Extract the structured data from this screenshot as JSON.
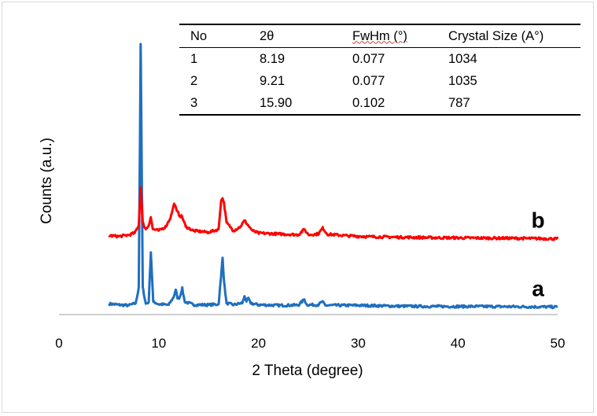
{
  "chart_data": {
    "type": "line",
    "xlabel": "2 Theta (degree)",
    "ylabel": "Counts (a.u.)",
    "xlim": [
      0,
      50
    ],
    "xticks": [
      0,
      10,
      20,
      30,
      40,
      50
    ],
    "ylim": [
      0,
      100
    ],
    "grid": false,
    "legend": "none",
    "series": [
      {
        "name": "a",
        "color": "#1f6fbf",
        "baseline": 3.8,
        "points": [
          [
            5.0,
            4.0
          ],
          [
            6.0,
            3.6
          ],
          [
            7.0,
            3.4
          ],
          [
            7.7,
            4.2
          ],
          [
            8.0,
            10
          ],
          [
            8.19,
            100
          ],
          [
            8.4,
            10
          ],
          [
            8.7,
            4.0
          ],
          [
            9.0,
            4.6
          ],
          [
            9.21,
            23
          ],
          [
            9.45,
            4.8
          ],
          [
            10.0,
            3.8
          ],
          [
            11.0,
            3.6
          ],
          [
            11.5,
            6.5
          ],
          [
            11.7,
            9.2
          ],
          [
            11.9,
            6.0
          ],
          [
            12.1,
            6.3
          ],
          [
            12.35,
            9.8
          ],
          [
            12.6,
            4.8
          ],
          [
            13.5,
            3.6
          ],
          [
            15.0,
            3.6
          ],
          [
            16.0,
            3.8
          ],
          [
            16.25,
            14
          ],
          [
            16.4,
            21
          ],
          [
            16.55,
            12
          ],
          [
            16.8,
            4.2
          ],
          [
            17.5,
            3.6
          ],
          [
            18.4,
            4.3
          ],
          [
            18.6,
            6.8
          ],
          [
            18.8,
            4.8
          ],
          [
            19.0,
            6.2
          ],
          [
            19.2,
            4.2
          ],
          [
            20.0,
            3.6
          ],
          [
            22.0,
            3.4
          ],
          [
            24.0,
            3.5
          ],
          [
            24.6,
            5.6
          ],
          [
            24.85,
            3.6
          ],
          [
            26.0,
            3.6
          ],
          [
            26.4,
            4.8
          ],
          [
            26.7,
            3.4
          ],
          [
            30.0,
            3.4
          ],
          [
            34.0,
            3.1
          ],
          [
            38.0,
            3.0
          ],
          [
            42.0,
            3.0
          ],
          [
            46.0,
            2.9
          ],
          [
            50.0,
            2.8
          ]
        ]
      },
      {
        "name": "b",
        "color": "#ff0000",
        "baseline": 29,
        "points": [
          [
            5.0,
            29.2
          ],
          [
            6.0,
            28.9
          ],
          [
            7.0,
            29.4
          ],
          [
            7.6,
            30.2
          ],
          [
            8.0,
            33
          ],
          [
            8.19,
            47
          ],
          [
            8.4,
            34
          ],
          [
            8.7,
            31.5
          ],
          [
            9.0,
            33
          ],
          [
            9.2,
            36
          ],
          [
            9.4,
            31.6
          ],
          [
            10.0,
            31
          ],
          [
            10.7,
            32.5
          ],
          [
            11.2,
            36
          ],
          [
            11.55,
            41
          ],
          [
            11.8,
            38.5
          ],
          [
            12.1,
            36.5
          ],
          [
            12.35,
            36.2
          ],
          [
            12.7,
            32.5
          ],
          [
            13.5,
            31
          ],
          [
            15.0,
            30.4
          ],
          [
            16.0,
            31.5
          ],
          [
            16.25,
            42
          ],
          [
            16.4,
            43
          ],
          [
            16.55,
            41
          ],
          [
            16.8,
            34
          ],
          [
            17.5,
            31
          ],
          [
            18.2,
            32.5
          ],
          [
            18.6,
            34.8
          ],
          [
            19.0,
            32.8
          ],
          [
            19.4,
            31.0
          ],
          [
            20.0,
            30.1
          ],
          [
            22.0,
            29.8
          ],
          [
            24.0,
            29.5
          ],
          [
            24.6,
            31.5
          ],
          [
            25.0,
            29.5
          ],
          [
            26.0,
            29.8
          ],
          [
            26.45,
            32
          ],
          [
            26.9,
            29.7
          ],
          [
            29.0,
            29.1
          ],
          [
            31.0,
            28.8
          ],
          [
            34.0,
            28.6
          ],
          [
            38.0,
            28.4
          ],
          [
            42.0,
            28.3
          ],
          [
            46.0,
            28.2
          ],
          [
            50.0,
            28.0
          ]
        ]
      }
    ],
    "curve_labels": [
      {
        "text": "a",
        "series": "a"
      },
      {
        "text": "b",
        "series": "b"
      }
    ]
  },
  "inset_table": {
    "headers": [
      "No",
      "2θ",
      "FwHm (°)",
      "Crystal Size (A°)"
    ],
    "rows": [
      [
        "1",
        "8.19",
        "0.077",
        "1034"
      ],
      [
        "2",
        "9.21",
        "0.077",
        "1035"
      ],
      [
        "3",
        "15.90",
        "0.102",
        "787"
      ]
    ]
  }
}
